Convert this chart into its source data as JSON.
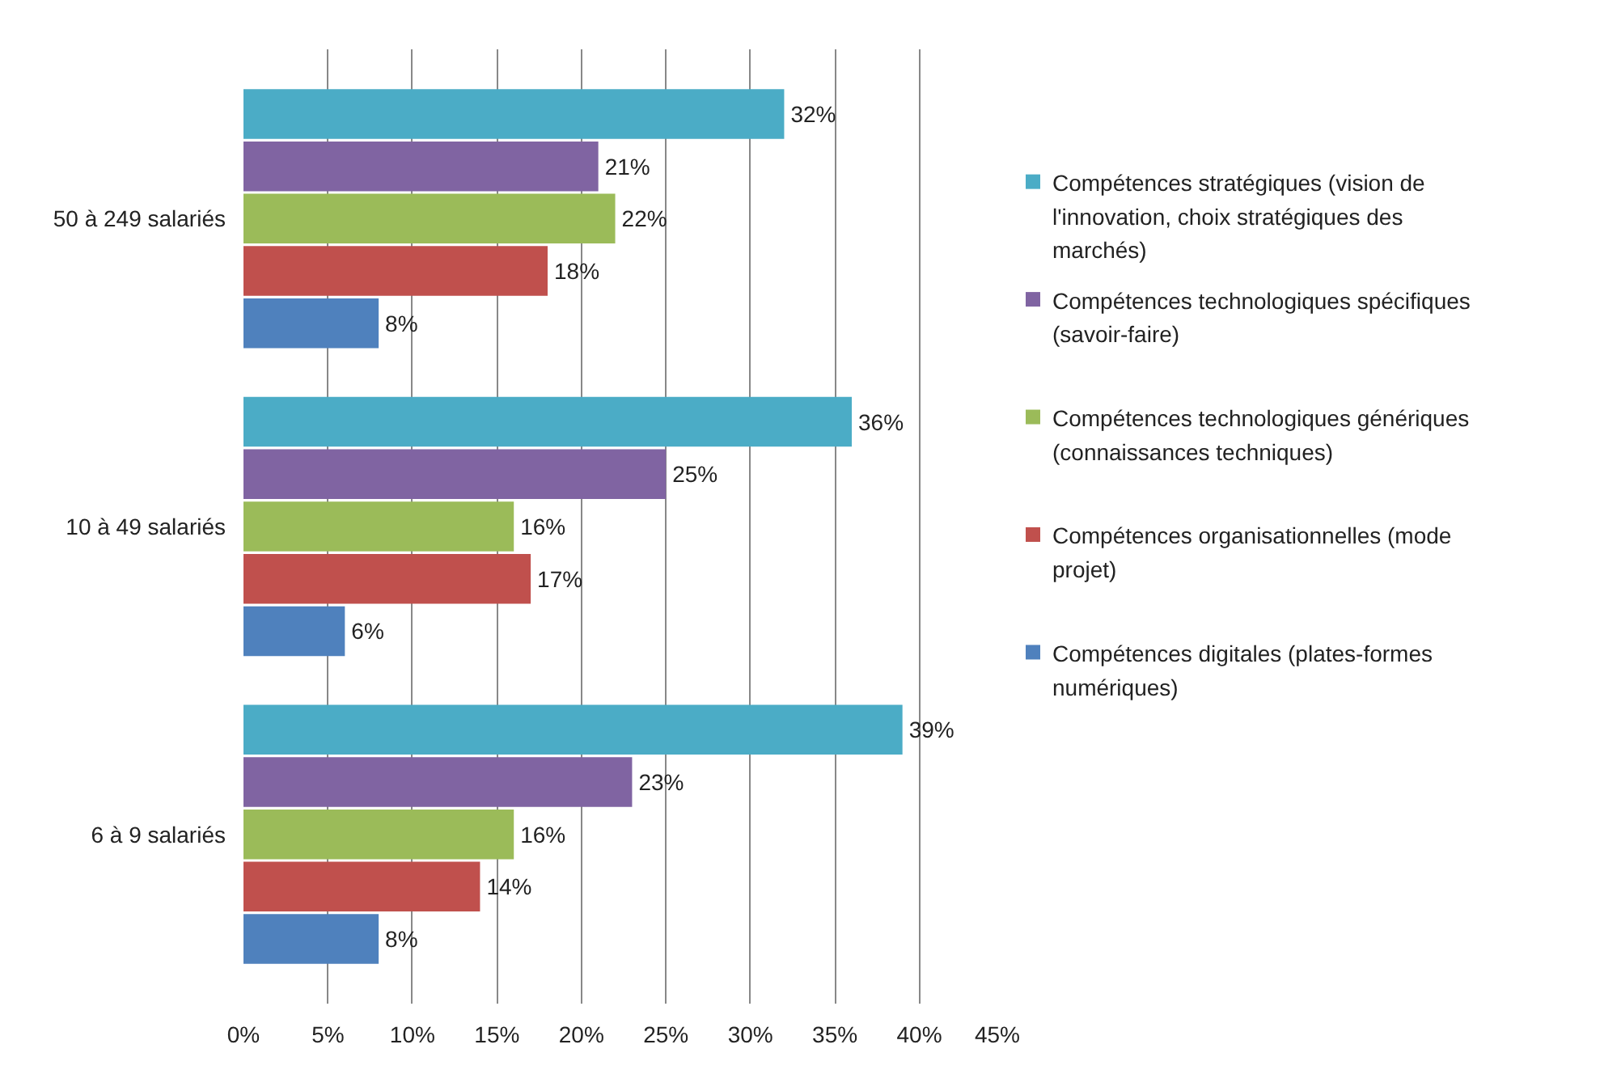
{
  "chart_data": {
    "type": "bar",
    "orientation": "horizontal",
    "categories": [
      "50 à 249 salariés",
      "10 à 49 salariés",
      "6 à 9 salariés"
    ],
    "series": [
      {
        "name": "Compétences stratégiques (vision de l'innovation, choix stratégiques des marchés)",
        "color": "#4bacc6",
        "values": [
          32,
          36,
          39
        ],
        "value_labels": [
          "32%",
          "36%",
          "39%"
        ]
      },
      {
        "name": "Compétences technologiques spécifiques (savoir-faire)",
        "color": "#8064a2",
        "values": [
          21,
          25,
          23
        ],
        "value_labels": [
          "21%",
          "25%",
          "23%"
        ]
      },
      {
        "name": "Compétences technologiques génériques (connaissances techniques)",
        "color": "#9bbb59",
        "values": [
          22,
          16,
          16
        ],
        "value_labels": [
          "22%",
          "16%",
          "16%"
        ]
      },
      {
        "name": "Compétences organisationnelles (mode projet)",
        "color": "#c0504d",
        "values": [
          18,
          17,
          14
        ],
        "value_labels": [
          "18%",
          "17%",
          "14%"
        ]
      },
      {
        "name": "Compétences digitales (plates-formes numériques)",
        "color": "#4f81bd",
        "values": [
          8,
          6,
          8
        ],
        "value_labels": [
          "8%",
          "6%",
          "8%"
        ]
      }
    ],
    "xlim": [
      0,
      45
    ],
    "xticks": [
      {
        "value": 0,
        "label": "0%"
      },
      {
        "value": 5,
        "label": "5%"
      },
      {
        "value": 10,
        "label": "10%"
      },
      {
        "value": 15,
        "label": "15%"
      },
      {
        "value": 20,
        "label": "20%"
      },
      {
        "value": 25,
        "label": "25%"
      },
      {
        "value": 30,
        "label": "30%"
      },
      {
        "value": 35,
        "label": "35%"
      },
      {
        "value": 40,
        "label": "40%"
      },
      {
        "value": 45,
        "label": "45%"
      }
    ],
    "grid": "x",
    "legend": "right"
  }
}
